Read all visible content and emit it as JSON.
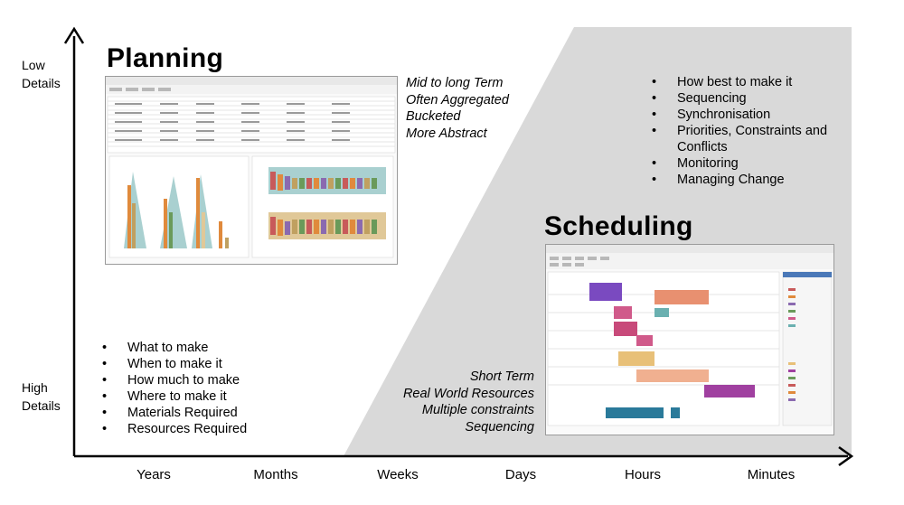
{
  "titles": {
    "planning": "Planning",
    "scheduling": "Scheduling"
  },
  "y_axis": {
    "top": [
      "Low",
      "Details"
    ],
    "bottom": [
      "High",
      "Details"
    ]
  },
  "x_axis": {
    "ticks": [
      "Years",
      "Months",
      "Weeks",
      "Days",
      "Hours",
      "Minutes"
    ]
  },
  "planning_traits": [
    "Mid to long Term",
    "Often Aggregated",
    "Bucketed",
    "More Abstract"
  ],
  "planning_bullets": [
    "What to make",
    "When to make it",
    "How much to make",
    "Where to make it",
    "Materials Required",
    "Resources Required"
  ],
  "scheduling_bullets": [
    "How best to make it",
    "Sequencing",
    "Synchronisation",
    "Priorities, Constraints and Conflicts",
    "Monitoring",
    "Managing Change"
  ],
  "scheduling_traits": [
    "Short Term",
    "Real World Resources",
    "Multiple constraints",
    "Sequencing"
  ],
  "colors": {
    "shade": "#d9d9d9",
    "axis": "#000000"
  }
}
